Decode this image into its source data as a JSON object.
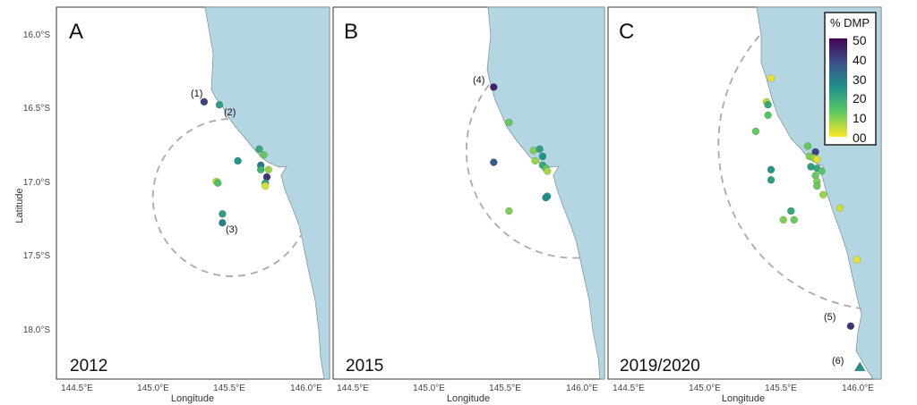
{
  "axes": {
    "ylabel": "Latitude",
    "xlabel": "Longitude",
    "lat_ticks": [
      "16.0°S",
      "16.5°S",
      "17.0°S",
      "17.5°S",
      "18.0°S"
    ],
    "lon_ticks": [
      "144.5°E",
      "145.0°E",
      "145.5°E",
      "146.0°E"
    ]
  },
  "colorbar": {
    "title": "% DMP",
    "ticks": [
      "50",
      "40",
      "30",
      "20",
      "10",
      "00"
    ],
    "range": [
      0,
      50
    ]
  },
  "panels": [
    {
      "letter": "A",
      "year": "2012",
      "site_labels": [
        "(1)",
        "(2)",
        "(3)"
      ],
      "samples": [
        {
          "lon": 145.33,
          "lat": 16.46,
          "pct": 40
        },
        {
          "lon": 145.43,
          "lat": 16.48,
          "pct": 22
        },
        {
          "lon": 145.55,
          "lat": 16.86,
          "pct": 24
        },
        {
          "lon": 145.41,
          "lat": 17.0,
          "pct": 6
        },
        {
          "lon": 145.42,
          "lat": 17.01,
          "pct": 15
        },
        {
          "lon": 145.45,
          "lat": 17.22,
          "pct": 22
        },
        {
          "lon": 145.45,
          "lat": 17.28,
          "pct": 28
        },
        {
          "lon": 145.69,
          "lat": 16.78,
          "pct": 20
        },
        {
          "lon": 145.72,
          "lat": 16.82,
          "pct": 12
        },
        {
          "lon": 145.7,
          "lat": 16.89,
          "pct": 30
        },
        {
          "lon": 145.7,
          "lat": 16.92,
          "pct": 18
        },
        {
          "lon": 145.75,
          "lat": 16.92,
          "pct": 8
        },
        {
          "lon": 145.74,
          "lat": 16.97,
          "pct": 42
        },
        {
          "lon": 145.73,
          "lat": 17.01,
          "pct": 20
        },
        {
          "lon": 145.73,
          "lat": 17.03,
          "pct": 3
        }
      ]
    },
    {
      "letter": "B",
      "year": "2015",
      "site_labels": [
        "(4)"
      ],
      "samples": [
        {
          "lon": 145.42,
          "lat": 16.36,
          "pct": 45
        },
        {
          "lon": 145.52,
          "lat": 16.6,
          "pct": 12
        },
        {
          "lon": 145.42,
          "lat": 16.87,
          "pct": 36
        },
        {
          "lon": 145.52,
          "lat": 17.2,
          "pct": 10
        },
        {
          "lon": 145.68,
          "lat": 16.79,
          "pct": 10
        },
        {
          "lon": 145.72,
          "lat": 16.78,
          "pct": 22
        },
        {
          "lon": 145.74,
          "lat": 16.83,
          "pct": 25
        },
        {
          "lon": 145.69,
          "lat": 16.86,
          "pct": 8
        },
        {
          "lon": 145.74,
          "lat": 16.89,
          "pct": 20
        },
        {
          "lon": 145.76,
          "lat": 16.91,
          "pct": 14
        },
        {
          "lon": 145.77,
          "lat": 16.93,
          "pct": 7
        },
        {
          "lon": 145.77,
          "lat": 17.1,
          "pct": 22
        },
        {
          "lon": 145.76,
          "lat": 17.11,
          "pct": 26
        }
      ]
    },
    {
      "letter": "C",
      "year": "2019/2020",
      "site_labels": [
        "(5)",
        "(6)"
      ],
      "samples": [
        {
          "lon": 145.43,
          "lat": 16.3,
          "pct": 2
        },
        {
          "lon": 145.4,
          "lat": 16.46,
          "pct": 6
        },
        {
          "lon": 145.41,
          "lat": 16.48,
          "pct": 20
        },
        {
          "lon": 145.41,
          "lat": 16.55,
          "pct": 14
        },
        {
          "lon": 145.33,
          "lat": 16.66,
          "pct": 12
        },
        {
          "lon": 145.67,
          "lat": 16.76,
          "pct": 12
        },
        {
          "lon": 145.72,
          "lat": 16.8,
          "pct": 40
        },
        {
          "lon": 145.68,
          "lat": 16.83,
          "pct": 10
        },
        {
          "lon": 145.71,
          "lat": 16.84,
          "pct": 8
        },
        {
          "lon": 145.73,
          "lat": 16.85,
          "pct": 2
        },
        {
          "lon": 145.69,
          "lat": 16.9,
          "pct": 22
        },
        {
          "lon": 145.73,
          "lat": 16.91,
          "pct": 20
        },
        {
          "lon": 145.76,
          "lat": 16.93,
          "pct": 14
        },
        {
          "lon": 145.72,
          "lat": 16.96,
          "pct": 12
        },
        {
          "lon": 145.73,
          "lat": 17.0,
          "pct": 10
        },
        {
          "lon": 145.73,
          "lat": 17.03,
          "pct": 12
        },
        {
          "lon": 145.77,
          "lat": 17.09,
          "pct": 8
        },
        {
          "lon": 145.43,
          "lat": 16.92,
          "pct": 24
        },
        {
          "lon": 145.43,
          "lat": 16.99,
          "pct": 22
        },
        {
          "lon": 145.88,
          "lat": 17.18,
          "pct": 4
        },
        {
          "lon": 145.56,
          "lat": 17.2,
          "pct": 20
        },
        {
          "lon": 145.51,
          "lat": 17.26,
          "pct": 10
        },
        {
          "lon": 145.58,
          "lat": 17.26,
          "pct": 12
        },
        {
          "lon": 145.99,
          "lat": 17.53,
          "pct": 2
        },
        {
          "lon": 145.95,
          "lat": 17.98,
          "pct": 42
        },
        {
          "lon": 146.01,
          "lat": 18.26,
          "pct": 25,
          "shape": "triangle"
        }
      ]
    }
  ]
}
